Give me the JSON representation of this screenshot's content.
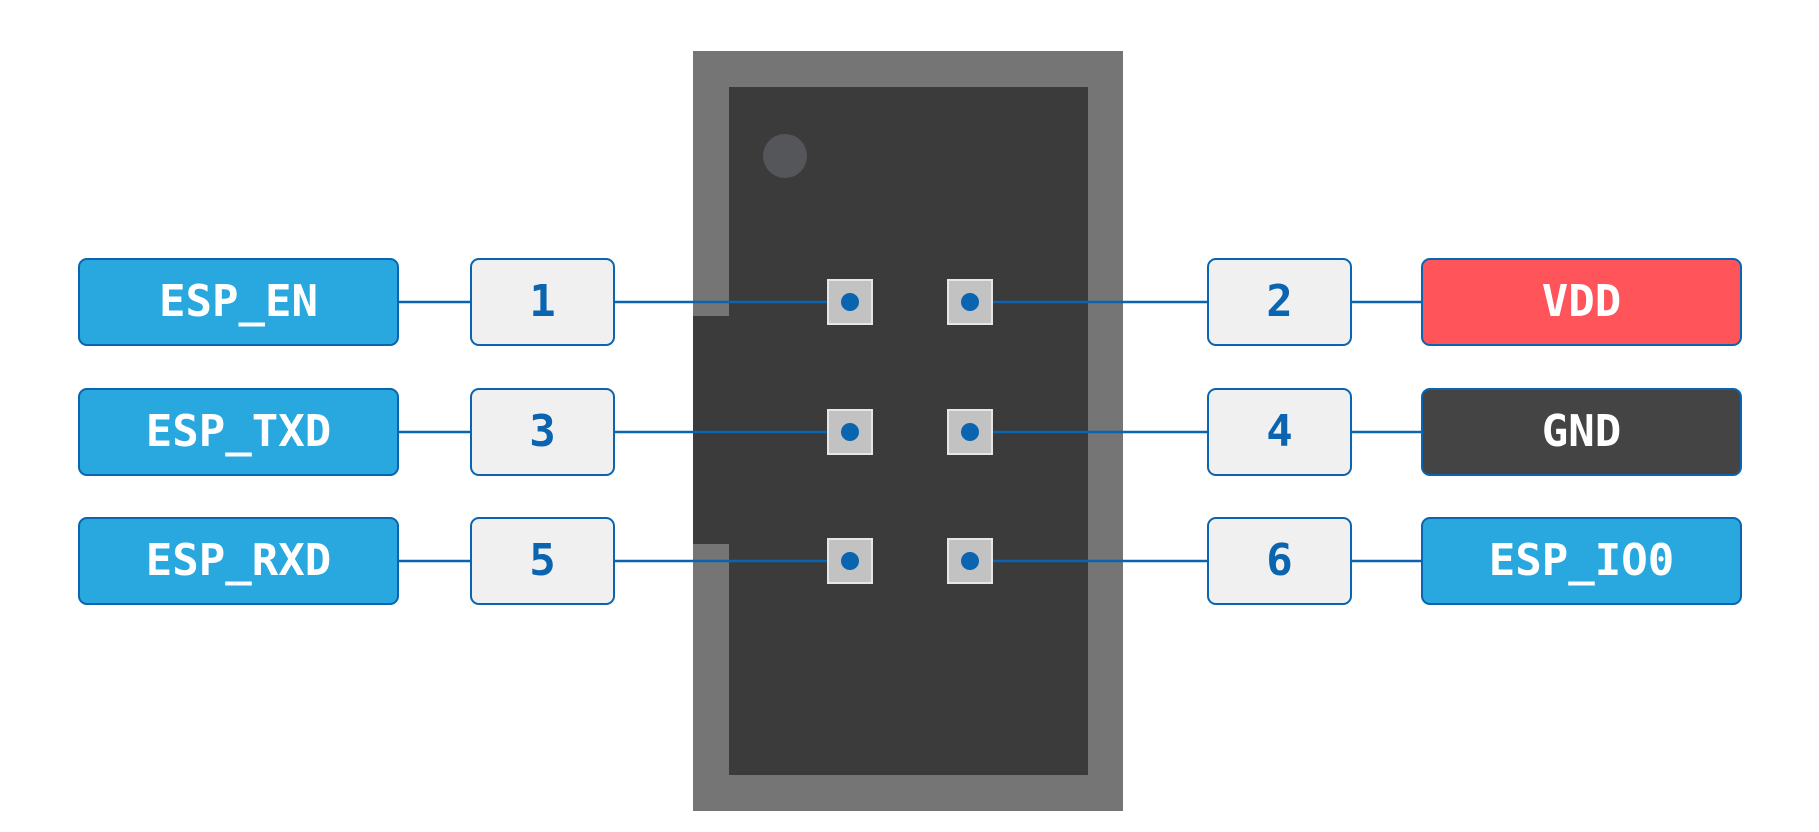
{
  "colors": {
    "signal_label": "#29a8e0",
    "power_label": "#ff5459",
    "ground_label": "#444444",
    "pin_box": "#f0f0f0",
    "wire": "#0a64b0",
    "header_outer": "#757575",
    "header_inner": "#3b3b3b",
    "pad": "#c2c2c2"
  },
  "pins": [
    {
      "number": "1",
      "name": "ESP_EN",
      "side": "left",
      "kind": "signal"
    },
    {
      "number": "2",
      "name": "VDD",
      "side": "right",
      "kind": "power"
    },
    {
      "number": "3",
      "name": "ESP_TXD",
      "side": "left",
      "kind": "signal"
    },
    {
      "number": "4",
      "name": "GND",
      "side": "right",
      "kind": "ground"
    },
    {
      "number": "5",
      "name": "ESP_RXD",
      "side": "left",
      "kind": "signal"
    },
    {
      "number": "6",
      "name": "ESP_IO0",
      "side": "right",
      "kind": "signal"
    }
  ]
}
